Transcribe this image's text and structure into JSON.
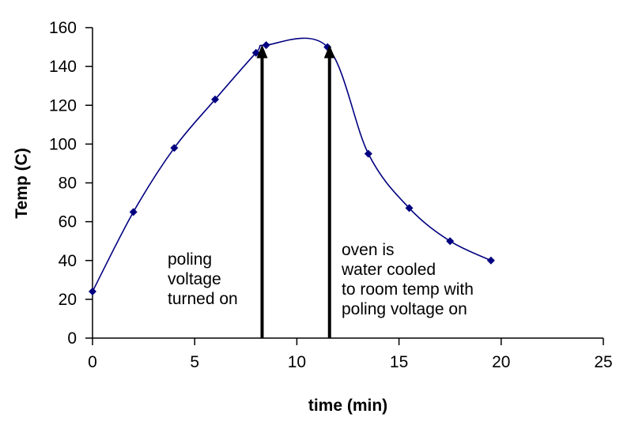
{
  "chart_data": {
    "type": "line",
    "title": "",
    "xlabel": "time (min)",
    "ylabel": "Temp (C)",
    "xlim": [
      0,
      25
    ],
    "ylim": [
      0,
      160
    ],
    "xticks": [
      0,
      5,
      10,
      15,
      20,
      25
    ],
    "yticks": [
      0,
      20,
      40,
      60,
      80,
      100,
      120,
      140,
      160
    ],
    "xtick_labels": [
      "0",
      "5",
      "10",
      "15",
      "20",
      "25"
    ],
    "ytick_labels": [
      "0",
      "20",
      "40",
      "60",
      "80",
      "100",
      "120",
      "140",
      "160"
    ],
    "grid": false,
    "legend": "none",
    "series": [
      {
        "name": "Temp",
        "color": "#000080",
        "marker": "diamond",
        "smooth": true,
        "x": [
          0,
          2,
          4,
          6,
          8,
          8.5,
          11.5,
          13.5,
          15.5,
          17.5,
          19.5
        ],
        "y": [
          24,
          65,
          98,
          123,
          147,
          151,
          150,
          95,
          67,
          50,
          40
        ]
      }
    ],
    "annotations": [
      {
        "name": "poling-on",
        "arrow_x": 8.3,
        "arrow_y_from": 0,
        "arrow_y_to": 150,
        "lines": [
          "poling",
          "voltage",
          "turned on"
        ]
      },
      {
        "name": "water-cooled",
        "arrow_x": 11.6,
        "arrow_y_from": 0,
        "arrow_y_to": 150,
        "lines": [
          "oven is",
          "water cooled",
          "to room temp with",
          "poling voltage on"
        ]
      }
    ]
  }
}
